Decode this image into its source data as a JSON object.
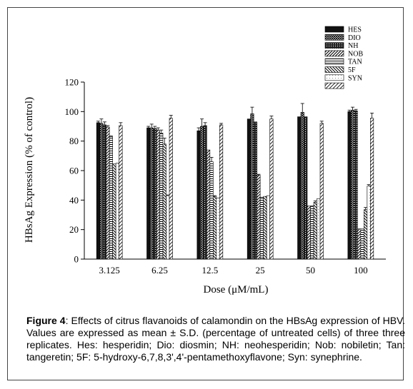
{
  "chart_data": {
    "type": "bar",
    "xlabel": "Dose (μM/mL)",
    "ylabel": "HBsAg Expression (% of control)",
    "ylim": [
      0,
      120
    ],
    "yticks": [
      0,
      20,
      40,
      60,
      80,
      100,
      120
    ],
    "categories": [
      "3.125",
      "6.25",
      "12.5",
      "25",
      "50",
      "100"
    ],
    "legend_position": "top-right",
    "series": [
      {
        "name": "HES",
        "pattern": "solid-black",
        "values": [
          92.5,
          89,
          87,
          95,
          96.5,
          100
        ],
        "errors": [
          1,
          1,
          2,
          0,
          0,
          1
        ]
      },
      {
        "name": "DIO",
        "pattern": "crosshatch-dense",
        "values": [
          92,
          89,
          90,
          98.5,
          99.5,
          101
        ],
        "errors": [
          3,
          2.5,
          5,
          4.5,
          6,
          2
        ]
      },
      {
        "name": "NH",
        "pattern": "dots-dense",
        "values": [
          91,
          88.5,
          90.5,
          93,
          96.5,
          100.5
        ],
        "errors": [
          2,
          1.5,
          2,
          0,
          0,
          1
        ]
      },
      {
        "name": "NOB",
        "pattern": "hatch-forward",
        "values": [
          89.5,
          87.5,
          74,
          57,
          36,
          20.5
        ],
        "errors": [
          1,
          1.5,
          0,
          0.5,
          0,
          0
        ]
      },
      {
        "name": "TAN",
        "pattern": "hlines",
        "values": [
          83,
          85.5,
          66,
          42,
          35.5,
          20.5
        ],
        "errors": [
          0.5,
          2,
          3,
          0,
          0.5,
          0
        ]
      },
      {
        "name": "5F",
        "pattern": "hatch-back",
        "values": [
          64.5,
          78,
          42.5,
          42.5,
          38.5,
          33.5
        ],
        "errors": [
          0,
          4,
          0.5,
          0,
          1,
          1.5
        ]
      },
      {
        "name": "SYN",
        "pattern": "light-dots",
        "values": [
          65,
          43,
          41.5,
          43,
          41,
          49.5
        ],
        "errors": [
          0,
          0.5,
          0,
          0,
          0,
          1
        ]
      },
      {
        "name": "",
        "pattern": "diagonal-light",
        "values": [
          90.5,
          95.5,
          91,
          95,
          92,
          95.5
        ],
        "errors": [
          2,
          2,
          1,
          2,
          1.5,
          3.5
        ]
      }
    ]
  },
  "caption": {
    "label": "Figure 4",
    "text": ": Effects of citrus flavanoids of calamondin on the HBsAg expression of HBV. Values are expressed as mean ± S.D. (percentage of untreated cells) of three three replicates. Hes: hesperidin; Dio: diosmin; NH: neohesperidin; Nob: nobiletin; Tan: tangeretin; 5F: 5-hydroxy-6,7,8,3',4'-pentamethoxyflavone; Syn: synephrine."
  }
}
